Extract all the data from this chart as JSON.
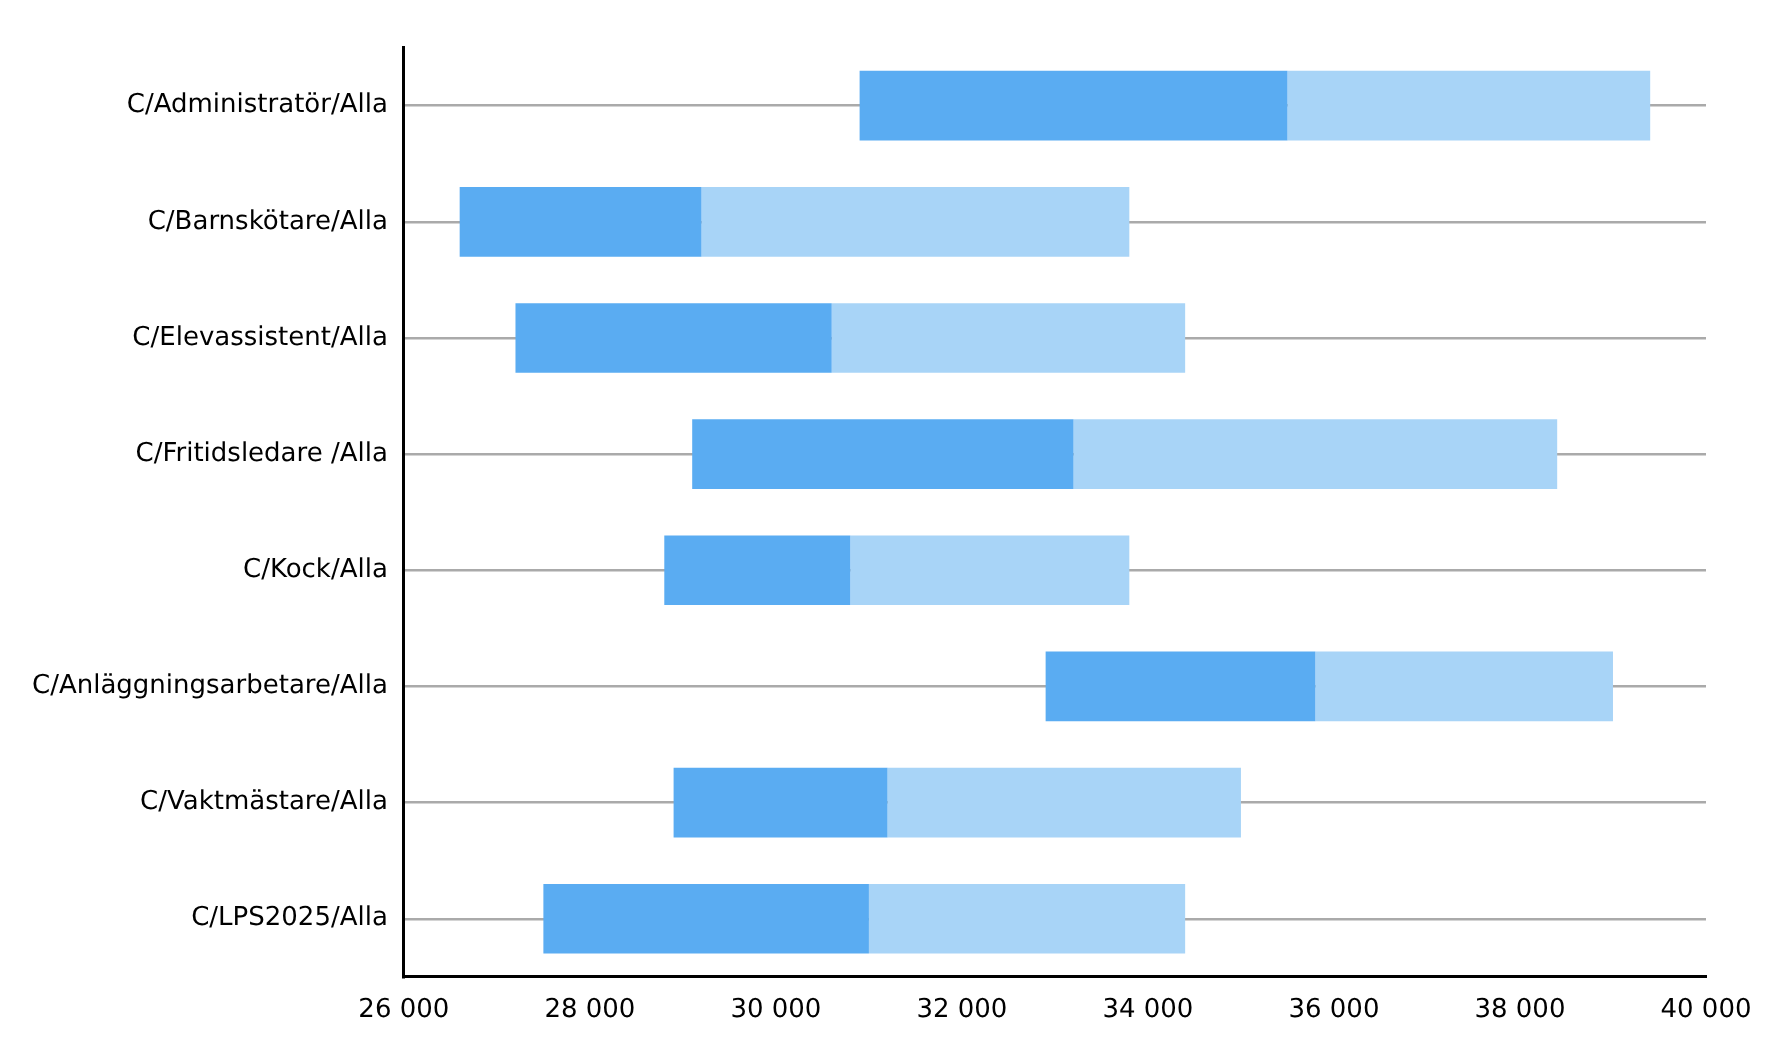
{
  "chart_data": {
    "type": "bar",
    "orientation": "horizontal",
    "categories": [
      "C/Administratör/Alla",
      "C/Barnskötare/Alla",
      "C/Elevassistent/Alla",
      "C/Fritidsledare /Alla",
      "C/Kock/Alla",
      "C/Anläggningsarbetare/Alla",
      "C/Vaktmästare/Alla",
      "C/LPS2025/Alla"
    ],
    "series": [
      {
        "color": "#5aacf2",
        "base": [
          30900,
          26600,
          27200,
          29100,
          28800,
          32900,
          28900,
          27500
        ],
        "values": [
          4600,
          2600,
          3400,
          4100,
          2000,
          2900,
          2300,
          3500
        ]
      },
      {
        "color": "#a8d4f7",
        "base": [
          35500,
          29200,
          30600,
          33200,
          30800,
          35800,
          31200,
          31000
        ],
        "values": [
          3900,
          4600,
          3800,
          5200,
          3000,
          3200,
          3800,
          3400
        ]
      }
    ],
    "xlim": [
      26000,
      40000
    ],
    "xticks": [
      {
        "value": 26000,
        "label": "26 000"
      },
      {
        "value": 28000,
        "label": "28 000"
      },
      {
        "value": 30000,
        "label": "30 000"
      },
      {
        "value": 32000,
        "label": "32 000"
      },
      {
        "value": 34000,
        "label": "34 000"
      },
      {
        "value": 36000,
        "label": "36 000"
      },
      {
        "value": 38000,
        "label": "38 000"
      },
      {
        "value": 40000,
        "label": "40 000"
      }
    ],
    "grid": "y",
    "legend": false
  }
}
